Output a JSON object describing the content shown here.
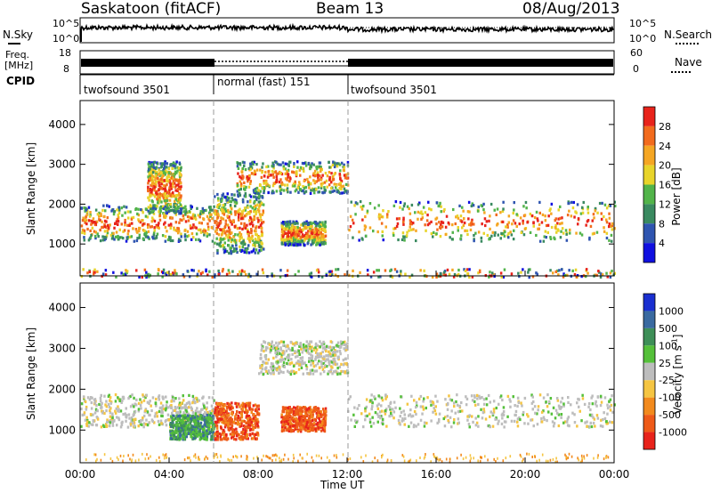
{
  "header": {
    "title": "Saskatoon (fitACF)",
    "beam": "Beam 13",
    "date": "08/Aug/2013"
  },
  "top_panels": {
    "nsky_label": "N.Sky",
    "nsearch_label": "N.Search",
    "noise_left_ticks": [
      "10^5",
      "10^0"
    ],
    "noise_right_ticks": [
      "10^5",
      "10^0"
    ],
    "freq_label_1": "Freq.",
    "freq_label_2": "[MHz]",
    "freq_ticks": [
      "18",
      "8"
    ],
    "nave_label": "Nave",
    "nave_ticks": [
      "60",
      "0"
    ],
    "cpid_label": "CPID",
    "cpid_segments": [
      {
        "label": "twofsound 3501",
        "start_hour": 0,
        "end_hour": 6
      },
      {
        "label": "normal (fast) 151",
        "start_hour": 6,
        "end_hour": 12
      },
      {
        "label": "twofsound 3501",
        "start_hour": 12,
        "end_hour": 24
      }
    ]
  },
  "chart_data": [
    {
      "type": "heatmap",
      "title": "",
      "xlabel": "",
      "ylabel": "Slant Range [km]",
      "xlim": [
        0,
        24
      ],
      "ylim": [
        200,
        4600
      ],
      "y_ticks": [
        "1000",
        "2000",
        "3000",
        "4000"
      ],
      "colorbar_label": "Power [dB]",
      "colorbar_ticks": [
        "4",
        "8",
        "12",
        "16",
        "20",
        "24",
        "28"
      ],
      "colorbar_colors": [
        "#1010e0",
        "#2f55b0",
        "#3a8a60",
        "#52b44a",
        "#e8d42a",
        "#f5a623",
        "#f26b1d",
        "#e8231b"
      ],
      "echo_regions": [
        {
          "hours": [
            0,
            6
          ],
          "range_km": [
            1100,
            2000
          ]
        },
        {
          "hours": [
            3,
            4.5
          ],
          "range_km": [
            1800,
            3100
          ]
        },
        {
          "hours": [
            6,
            8.2
          ],
          "range_km": [
            800,
            2300
          ]
        },
        {
          "hours": [
            7,
            12
          ],
          "range_km": [
            2300,
            3100
          ]
        },
        {
          "hours": [
            9,
            11
          ],
          "range_km": [
            1000,
            1600
          ]
        },
        {
          "hours": [
            12,
            24
          ],
          "range_km": [
            1100,
            2100
          ]
        },
        {
          "hours": [
            0,
            24
          ],
          "range_km": [
            200,
            400
          ]
        }
      ]
    },
    {
      "type": "heatmap",
      "title": "",
      "xlabel": "Time UT",
      "ylabel": "Slant Range [km]",
      "xlim": [
        0,
        24
      ],
      "ylim": [
        200,
        4600
      ],
      "y_ticks": [
        "1000",
        "2000",
        "3000",
        "4000"
      ],
      "x_ticks": [
        "00:00",
        "04:00",
        "08:00",
        "12:00",
        "16:00",
        "20:00",
        "00:00"
      ],
      "colorbar_label": "Velocity [m s",
      "colorbar_label_sup": "-1",
      "colorbar_label_end": "]",
      "colorbar_ticks": [
        "1000",
        "500",
        "100",
        "25",
        "-25",
        "-100",
        "-500",
        "-1000"
      ],
      "colorbar_colors": [
        "#1a2fd0",
        "#3a6aa0",
        "#3e8f58",
        "#55c03a",
        "#bdbdbd",
        "#f5c542",
        "#f28a1d",
        "#ee5a18",
        "#e8231b"
      ],
      "echo_regions": [
        {
          "hours": [
            0,
            6
          ],
          "range_km": [
            1100,
            1900
          ],
          "velocity": "~0"
        },
        {
          "hours": [
            4,
            6
          ],
          "range_km": [
            800,
            1400
          ],
          "velocity": "+100 to +500"
        },
        {
          "hours": [
            6,
            8
          ],
          "range_km": [
            800,
            1700
          ],
          "velocity": "-100 to -500"
        },
        {
          "hours": [
            8,
            12
          ],
          "range_km": [
            2400,
            3200
          ],
          "velocity": "~0"
        },
        {
          "hours": [
            9,
            11
          ],
          "range_km": [
            1000,
            1600
          ],
          "velocity": "-100 to -500"
        },
        {
          "hours": [
            12,
            24
          ],
          "range_km": [
            1100,
            1900
          ],
          "velocity": "~0"
        }
      ]
    }
  ]
}
